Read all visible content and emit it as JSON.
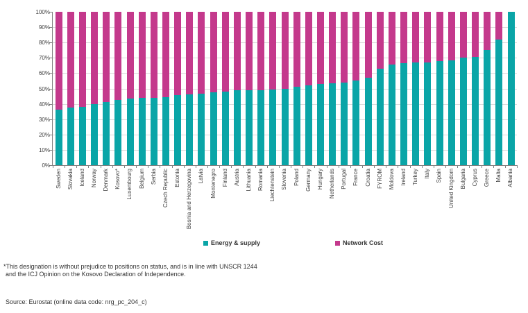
{
  "chart_data": {
    "type": "bar",
    "stacked": true,
    "percent_stacked": true,
    "title": "",
    "xlabel": "",
    "ylabel": "",
    "ylim": [
      0,
      100
    ],
    "grid": true,
    "legend_position": "bottom",
    "ytick_labels": [
      "0%",
      "10%",
      "20%",
      "30%",
      "40%",
      "50%",
      "60%",
      "70%",
      "80%",
      "90%",
      "100%"
    ],
    "categories": [
      "Sweden",
      "Slovakia",
      "Iceland",
      "Norway",
      "Denmark",
      "Kosovo*",
      "Luxembourg",
      "Belgium",
      "Serbia",
      "Czech Republic",
      "Estonia",
      "Bosnia and Herzegovina",
      "Latvia",
      "Montenegro",
      "Finland",
      "Austria",
      "Lithuania",
      "Romania",
      "Liechtenstein",
      "Slovenia",
      "Poland",
      "Germany",
      "Hungary",
      "Netherlands",
      "Portugal",
      "France",
      "Croatia",
      "FYROM",
      "Moldova",
      "Ireland",
      "Turkey",
      "Italy",
      "Spain",
      "United Kingdom",
      "Bulgaria",
      "Cyprus",
      "Greece",
      "Malta",
      "Albania"
    ],
    "series": [
      {
        "name": "Energy & supply",
        "color": "#0aa5a7",
        "values": [
          36,
          37.5,
          38,
          40,
          41,
          42.5,
          43.5,
          44,
          44,
          44.5,
          45.5,
          46,
          46.5,
          47.5,
          48,
          49,
          49,
          49,
          49.5,
          50,
          51,
          52,
          53,
          53.5,
          54,
          55,
          57,
          63,
          65.5,
          66.5,
          67,
          67,
          68,
          68.5,
          70,
          70.5,
          75,
          82,
          100
        ]
      },
      {
        "name": "Network Cost",
        "color": "#c4398c",
        "values": [
          64,
          62.5,
          62,
          60,
          59,
          57.5,
          56.5,
          56,
          56,
          55.5,
          54.5,
          54,
          53.5,
          52.5,
          52,
          51,
          51,
          51,
          50.5,
          50,
          49,
          48,
          47,
          46.5,
          46,
          45,
          43,
          37,
          34.5,
          33.5,
          33,
          33,
          32,
          31.5,
          30,
          29.5,
          25,
          18,
          0
        ]
      }
    ]
  },
  "legend": {
    "items": [
      {
        "label": "Energy & supply",
        "color": "#0aa5a7"
      },
      {
        "label": "Network Cost",
        "color": "#c4398c"
      }
    ]
  },
  "footnote": {
    "line1": "*This designation is without prejudice to positions on status, and is in line with UNSCR 1244",
    "line2": "and the ICJ Opinion on the Kosovo Declaration of Independence."
  },
  "source": "Source: Eurostat (online data code: nrg_pc_204_c)"
}
